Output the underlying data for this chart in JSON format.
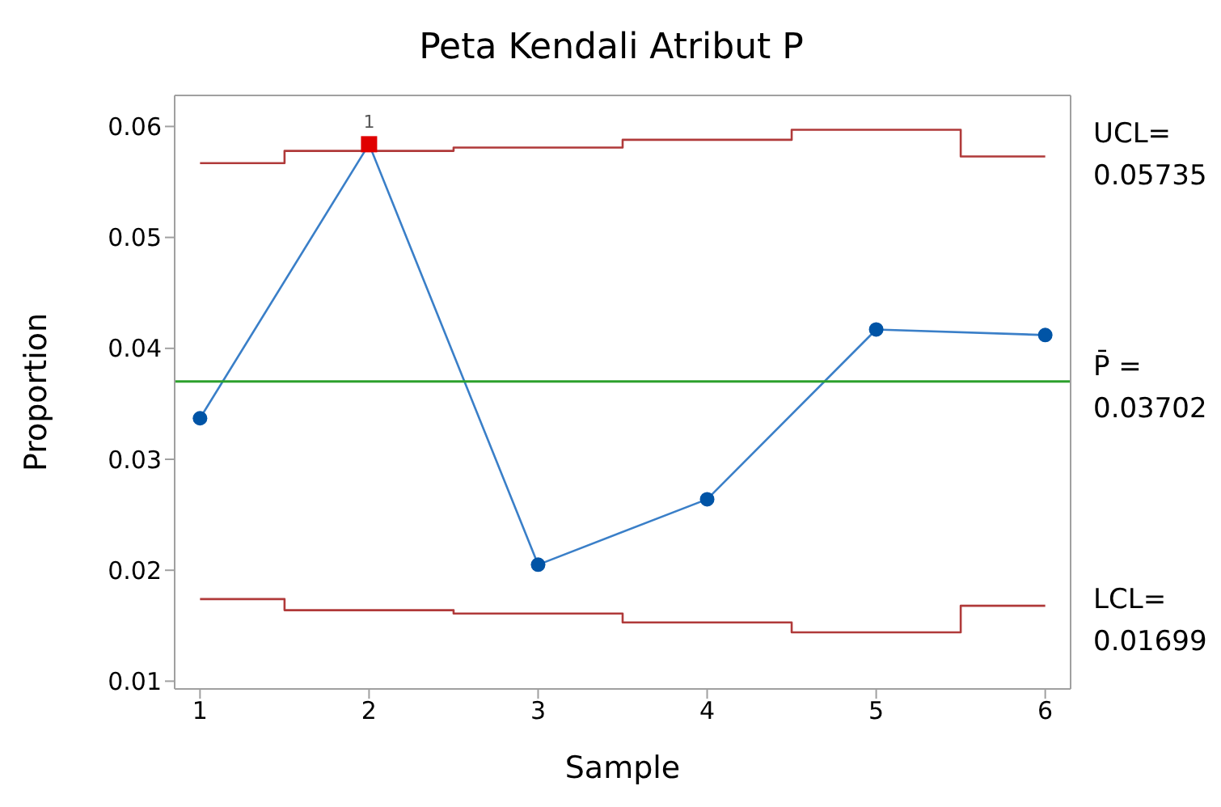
{
  "chart_data": {
    "type": "line",
    "title": "Peta Kendali Atribut P",
    "xlabel": "Sample",
    "ylabel": "Proportion",
    "x": [
      1,
      2,
      3,
      4,
      5,
      6
    ],
    "series": [
      {
        "type": "line",
        "color": "#3a7fc8",
        "colors": [
          "#0054a6",
          "#e00000",
          "#0054a6",
          "#0054a6",
          "#0054a6",
          "#0054a6"
        ],
        "marker": "circle",
        "values": [
          0.0337,
          0.0584,
          0.0205,
          0.0264,
          0.0417,
          0.0412
        ]
      },
      {
        "type": "step",
        "color": "#b03a3a",
        "marker": "none",
        "values": [
          0.0567,
          0.0578,
          0.0581,
          0.0588,
          0.0597,
          0.0573
        ]
      },
      {
        "type": "step",
        "color": "#b03a3a",
        "marker": "none",
        "values": [
          0.0174,
          0.0164,
          0.0161,
          0.0153,
          0.0144,
          0.0168
        ]
      }
    ],
    "ref_lines": [
      {
        "axis": "y",
        "value": 0.03702,
        "color": "#2ca02c"
      }
    ],
    "annotations": [
      "UCL=\n0.05735",
      "P̄ =\n0.03702",
      "LCL=\n0.01699",
      {
        "text": "1",
        "x": 2,
        "y": 0.0584
      }
    ],
    "xlim": [
      0.85,
      6.15
    ],
    "xticks": [
      1,
      2,
      3,
      4,
      5,
      6
    ],
    "ylim": [
      0.0093,
      0.0628
    ],
    "yticks": [
      0.01,
      0.02,
      0.03,
      0.04,
      0.05,
      0.06
    ]
  }
}
